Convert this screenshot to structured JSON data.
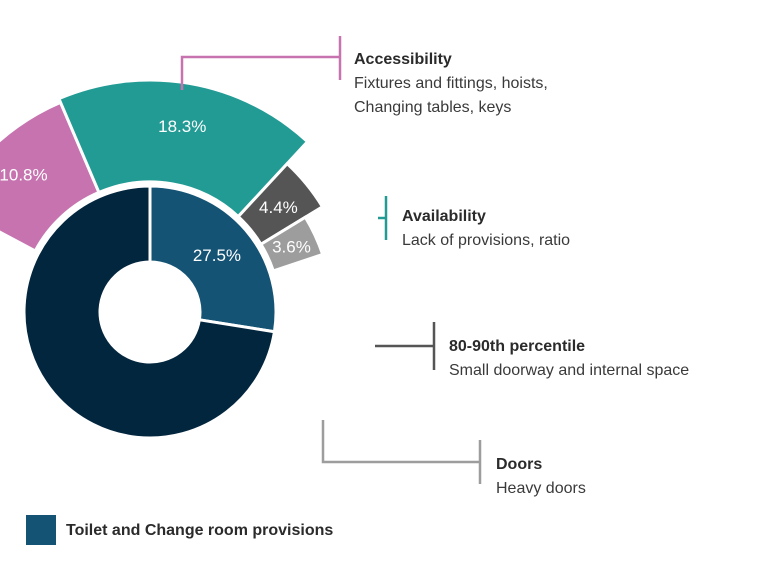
{
  "chart_data": {
    "type": "pie",
    "inner_ring": {
      "slices": [
        {
          "label_text": "27.5%",
          "value": 27.5,
          "color": "#145374"
        },
        {
          "value": 72.5,
          "color": "#03263f"
        }
      ]
    },
    "outer_ring": {
      "slices": [
        {
          "label_text": "10.8%",
          "value": 10.8,
          "color": "#c673b0",
          "title": "Accessibility",
          "description": [
            "Fixtures and fittings, hoists,",
            "Changing tables, keys"
          ]
        },
        {
          "label_text": "18.3%",
          "value": 18.3,
          "color": "#229b94",
          "title": "Availability",
          "description": [
            "Lack of provisions, ratio"
          ]
        },
        {
          "label_text": "4.4%",
          "value": 4.4,
          "color": "#555555",
          "title": "80-90th percentile",
          "description": [
            "Small doorway and internal space"
          ]
        },
        {
          "label_text": "3.6%",
          "value": 3.6,
          "color": "#9d9d9d",
          "title": "Doors",
          "description": [
            "Heavy doors"
          ]
        }
      ]
    },
    "legend": [
      {
        "label": "Toilet and Change room provisions",
        "color": "#145374"
      }
    ],
    "legend_placement": "bottom-left"
  }
}
